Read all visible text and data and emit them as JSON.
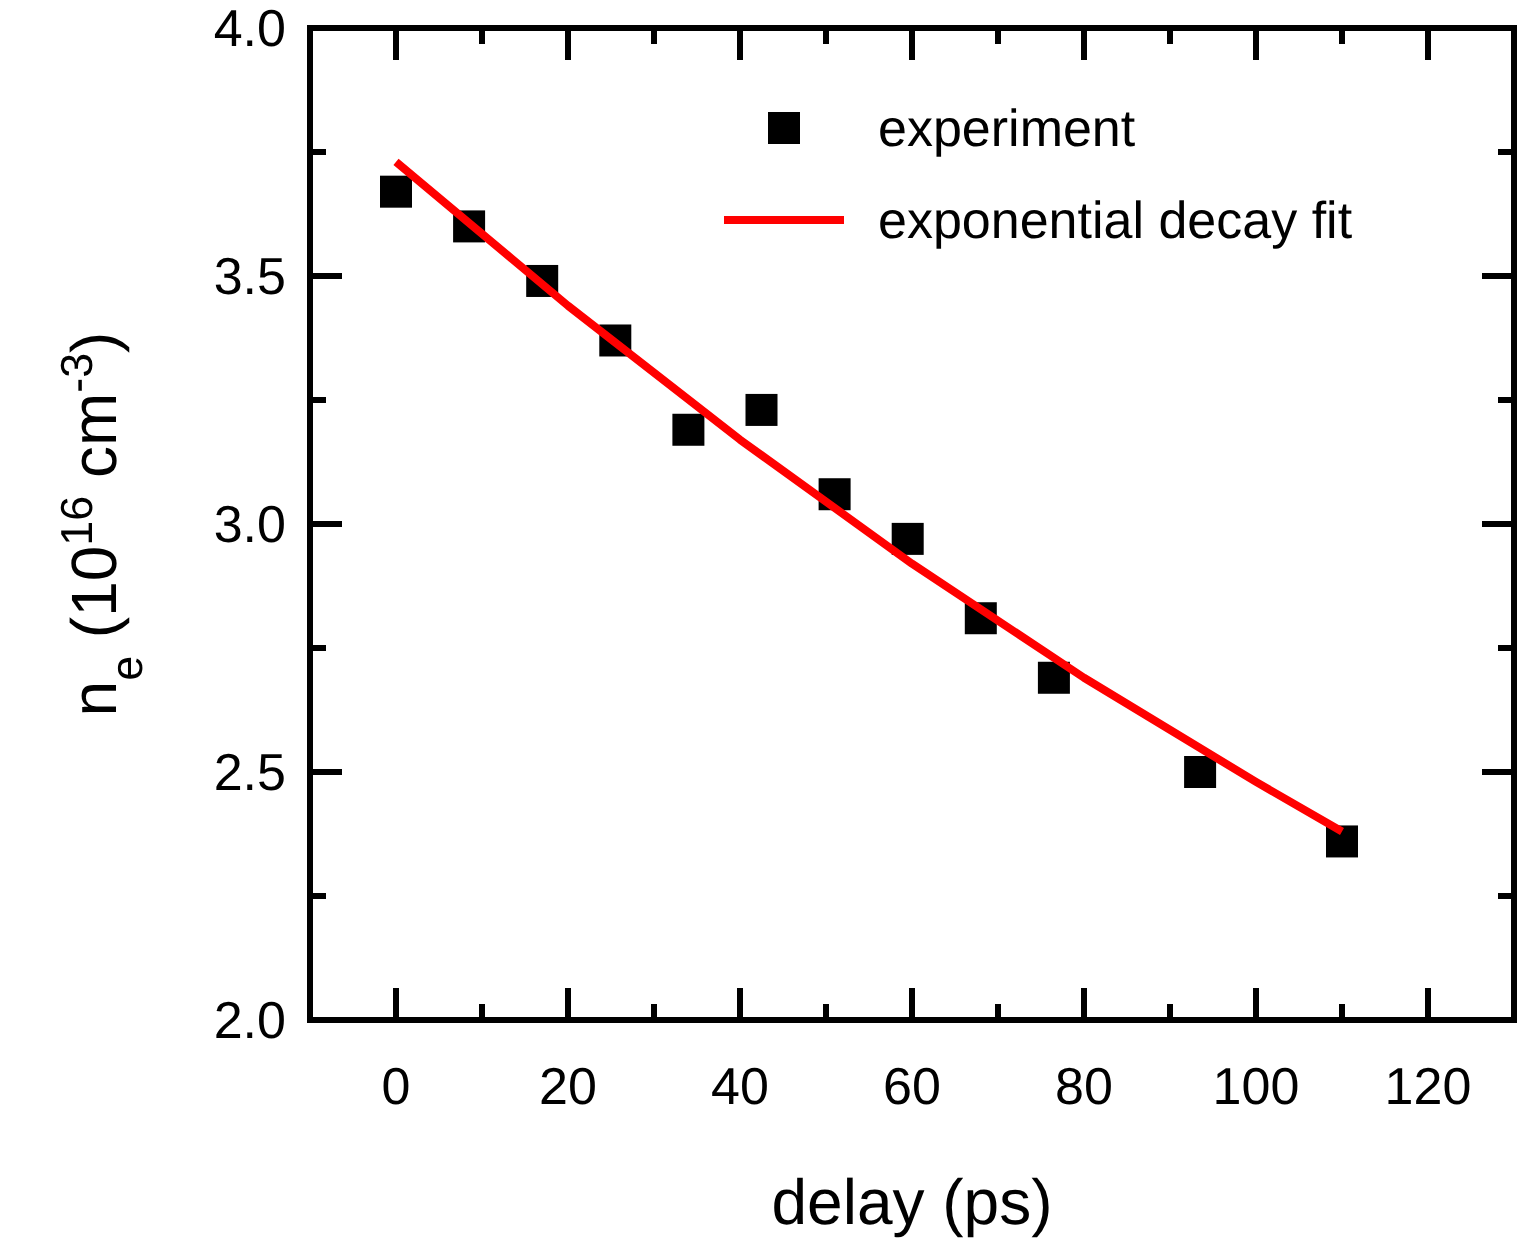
{
  "chart_data": {
    "type": "scatter",
    "xlabel": "delay (ps)",
    "ylabel": "n$_{e}$ (10$^{16}$ cm$^{-3}$)",
    "xlim": [
      -10,
      130
    ],
    "ylim": [
      2.0,
      4.0
    ],
    "xticks": [
      0,
      {
        "value": 10,
        "label": null
      },
      20,
      {
        "value": 30,
        "label": null
      },
      40,
      {
        "value": 50,
        "label": null
      },
      60,
      {
        "value": 70,
        "label": null
      },
      80,
      {
        "value": 90,
        "label": null
      },
      100,
      {
        "value": 110,
        "label": null
      },
      120
    ],
    "yticks": [
      {
        "value": 2.0,
        "label": "2.0"
      },
      {
        "value": 2.25,
        "label": null
      },
      2.5,
      {
        "value": 2.75,
        "label": null
      },
      {
        "value": 3.0,
        "label": "3.0"
      },
      {
        "value": 3.25,
        "label": null
      },
      3.5,
      {
        "value": 3.75,
        "label": null
      },
      {
        "value": 4.0,
        "label": "4.0"
      }
    ],
    "legend": "top right",
    "grid": false,
    "series": [
      {
        "name": "experiment",
        "marker": "square",
        "color": "#000000",
        "x": [
          0,
          8.5,
          17,
          25.5,
          34,
          42.5,
          51,
          59.5,
          68,
          76.5,
          93.5,
          110
        ],
        "values": [
          3.67,
          3.6,
          3.49,
          3.37,
          3.19,
          3.23,
          3.06,
          2.97,
          2.81,
          2.69,
          2.5,
          2.36
        ]
      },
      {
        "name": "exponential decay fit",
        "type": "line",
        "line_style": "solid",
        "color": "#ff0000",
        "x": [
          0,
          20,
          40,
          60,
          80,
          100,
          110
        ],
        "values": [
          3.73,
          3.44,
          3.17,
          2.92,
          2.69,
          2.48,
          2.38
        ]
      }
    ]
  }
}
